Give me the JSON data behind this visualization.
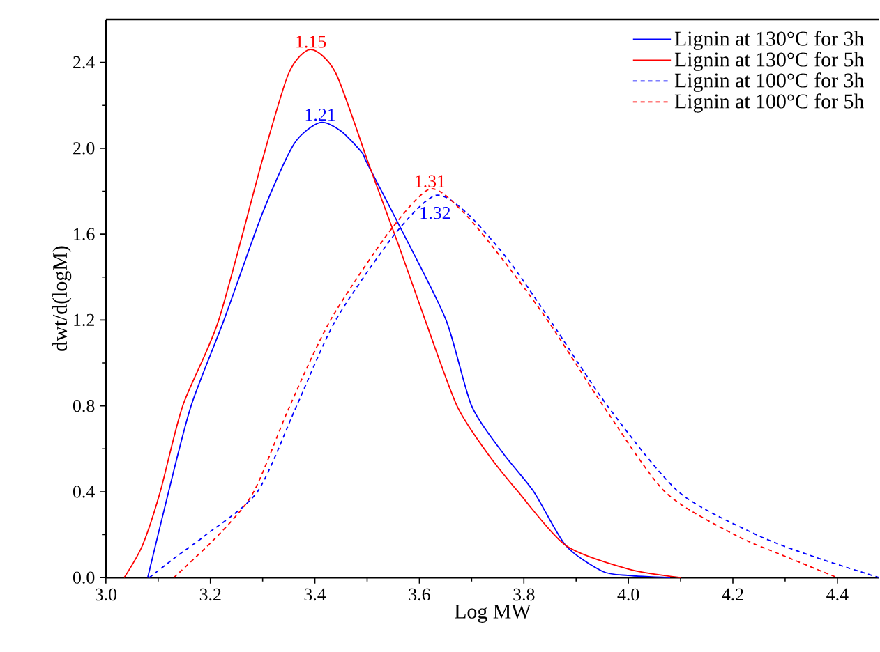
{
  "chart_data": {
    "type": "line",
    "xlabel": "Log MW",
    "ylabel": "dwt/d(logM)",
    "xlim": [
      3.0,
      4.48
    ],
    "ylim": [
      0,
      2.6
    ],
    "xticks": [
      {
        "value": 3.0,
        "label": "3.0"
      },
      {
        "value": 3.2,
        "label": "3.2"
      },
      {
        "value": 3.4,
        "label": "3.4"
      },
      {
        "value": 3.6,
        "label": "3.6"
      },
      {
        "value": 3.8,
        "label": "3.8"
      },
      {
        "value": 4.0,
        "label": "4.0"
      },
      {
        "value": 4.2,
        "label": "4.2"
      },
      {
        "value": 4.4,
        "label": "4.4"
      }
    ],
    "yticks": [
      {
        "value": 0,
        "label": "0.0"
      },
      {
        "value": 0.4,
        "label": "0.4"
      },
      {
        "value": 0.8,
        "label": "0.8"
      },
      {
        "value": 1.2,
        "label": "1.2"
      },
      {
        "value": 1.6,
        "label": "1.6"
      },
      {
        "value": 2.0,
        "label": "2.0"
      },
      {
        "value": 2.4,
        "label": "2.4"
      }
    ],
    "legend": "top right",
    "grid": false,
    "marker": "none",
    "series": [
      {
        "name": "Lignin at 130°C for 3h",
        "color": "#0000ff",
        "line_style": "solid",
        "x": [
          3.08,
          3.12,
          3.163,
          3.226,
          3.3,
          3.36,
          3.41,
          3.45,
          3.49,
          3.5,
          3.57,
          3.651,
          3.7,
          3.76,
          3.819,
          3.88,
          3.95,
          4.0,
          4.08
        ],
        "values": [
          0,
          0.4,
          0.8,
          1.2,
          1.7,
          2.02,
          2.12,
          2.08,
          1.98,
          1.93,
          1.6,
          1.2,
          0.8,
          0.58,
          0.4,
          0.15,
          0.03,
          0.01,
          0
        ]
      },
      {
        "name": "Lignin at 130°C for 5h",
        "color": "#ff0000",
        "line_style": "solid",
        "x": [
          3.035,
          3.07,
          3.104,
          3.147,
          3.216,
          3.3,
          3.35,
          3.392,
          3.44,
          3.504,
          3.56,
          3.611,
          3.672,
          3.73,
          3.789,
          3.88,
          4.0,
          4.1
        ],
        "values": [
          0,
          0.15,
          0.4,
          0.8,
          1.2,
          1.95,
          2.35,
          2.46,
          2.35,
          1.92,
          1.55,
          1.2,
          0.8,
          0.58,
          0.4,
          0.15,
          0.04,
          0
        ]
      },
      {
        "name": "Lignin at 100°C for 3h",
        "color": "#0000ff",
        "line_style": "dashed",
        "x": [
          3.083,
          3.136,
          3.192,
          3.29,
          3.365,
          3.44,
          3.553,
          3.63,
          3.69,
          3.77,
          3.85,
          3.96,
          4.096,
          4.245,
          4.352,
          4.48
        ],
        "values": [
          0,
          0.1,
          0.2,
          0.4,
          0.8,
          1.2,
          1.6,
          1.78,
          1.7,
          1.48,
          1.2,
          0.8,
          0.4,
          0.2,
          0.1,
          0
        ]
      },
      {
        "name": "Lignin at 100°C for 5h",
        "color": "#ff0000",
        "line_style": "dashed",
        "x": [
          3.13,
          3.216,
          3.283,
          3.352,
          3.43,
          3.539,
          3.62,
          3.685,
          3.76,
          3.845,
          3.952,
          4.07,
          4.203,
          4.299,
          4.4
        ],
        "values": [
          0,
          0.2,
          0.4,
          0.8,
          1.2,
          1.6,
          1.81,
          1.7,
          1.48,
          1.2,
          0.8,
          0.4,
          0.2,
          0.1,
          0
        ]
      }
    ],
    "annotations": [
      {
        "text": "1.15",
        "x": 3.392,
        "y": 2.46
      },
      {
        "text": "1.21",
        "x": 3.41,
        "y": 2.12
      },
      {
        "text": "1.31",
        "x": 3.62,
        "y": 1.81
      },
      {
        "text": "1.32",
        "x": 3.63,
        "y": 1.78
      }
    ]
  }
}
